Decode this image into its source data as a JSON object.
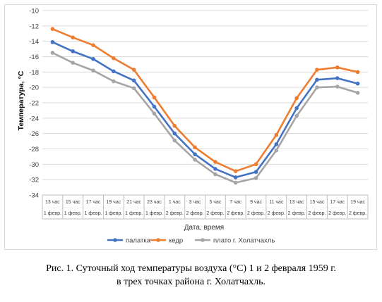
{
  "chart_data": {
    "type": "line",
    "title": "",
    "xlabel": "Дата, время",
    "ylabel": "Температура, °C",
    "ylim": [
      -34,
      -10
    ],
    "ytick_step": 2,
    "grid": true,
    "legend_position": "bottom",
    "categories": [
      {
        "time": "13 час",
        "date": "1 февр."
      },
      {
        "time": "15 час",
        "date": "1 февр."
      },
      {
        "time": "17 час",
        "date": "1 февр."
      },
      {
        "time": "19 час",
        "date": "1 февр."
      },
      {
        "time": "21 час",
        "date": "1 февр."
      },
      {
        "time": "23 час",
        "date": "1 февр."
      },
      {
        "time": "1 час",
        "date": "2 февр."
      },
      {
        "time": "3 час",
        "date": "2 февр."
      },
      {
        "time": "5 час",
        "date": "2 февр."
      },
      {
        "time": "7 час",
        "date": "2 февр."
      },
      {
        "time": "9 час",
        "date": "2 февр."
      },
      {
        "time": "11 час",
        "date": "2 февр."
      },
      {
        "time": "13 час",
        "date": "2 февр."
      },
      {
        "time": "15 час",
        "date": "2 февр."
      },
      {
        "time": "17 час",
        "date": "2 февр."
      },
      {
        "time": "19 час",
        "date": "2 февр."
      }
    ],
    "series": [
      {
        "name": "палатка",
        "color": "#4472c4",
        "values": [
          -14.1,
          -15.3,
          -16.3,
          -17.9,
          -19.1,
          -22.5,
          -26.0,
          -28.7,
          -30.6,
          -31.7,
          -31.0,
          -27.4,
          -22.7,
          -19.0,
          -18.8,
          -19.5
        ]
      },
      {
        "name": "кедр",
        "color": "#ed7d31",
        "values": [
          -12.4,
          -13.5,
          -14.5,
          -16.2,
          -17.7,
          -21.3,
          -25.0,
          -27.8,
          -29.7,
          -30.9,
          -30.0,
          -26.2,
          -21.4,
          -17.7,
          -17.4,
          -18.0
        ]
      },
      {
        "name": "плато г. Холатчахль",
        "color": "#a5a5a5",
        "values": [
          -15.5,
          -16.8,
          -17.8,
          -19.2,
          -20.1,
          -23.4,
          -26.9,
          -29.4,
          -31.3,
          -32.4,
          -31.8,
          -28.2,
          -23.7,
          -20.0,
          -19.9,
          -20.7
        ]
      }
    ]
  },
  "caption": {
    "line1": "Рис. 1. Суточный ход температуры воздуха (°C) 1 и 2 февраля 1959 г.",
    "line2": "в трех точках района г. Холатчахль."
  }
}
